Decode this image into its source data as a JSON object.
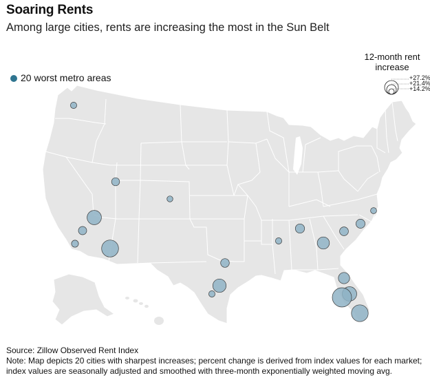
{
  "header": {
    "title": "Soaring Rents",
    "subtitle": "Among large cities, rents are increasing the most in the Sun Belt"
  },
  "legend": {
    "dot_label": "20 worst metro areas",
    "dot_color": "#2f7590",
    "size_title_line1": "12-month rent",
    "size_title_line2": "increase",
    "size_labels": [
      "+27.2%",
      "+21.4%",
      "+14.2%"
    ]
  },
  "colors": {
    "land": "#e6e6e6",
    "state_border": "#ffffff",
    "bubble_fill": "#8fb3c6",
    "bubble_stroke": "#3b3b3b"
  },
  "footer": {
    "source": "Source: Zillow Observed Rent Index",
    "note": "Note: Map depicts 20 cities with sharpest increases; percent change is derived from index values for each market; index values are seasonally adjusted and smoothed with three-month exponentially weighted moving avg."
  },
  "metros": [
    {
      "id": "seattle",
      "increase_pct": 14.6
    },
    {
      "id": "salt-lake-city",
      "increase_pct": 16.0
    },
    {
      "id": "denver",
      "increase_pct": 14.3
    },
    {
      "id": "las-vegas",
      "increase_pct": 21.0
    },
    {
      "id": "riverside",
      "increase_pct": 16.2
    },
    {
      "id": "san-diego",
      "increase_pct": 15.2
    },
    {
      "id": "phoenix",
      "increase_pct": 23.0
    },
    {
      "id": "dallas",
      "increase_pct": 16.5
    },
    {
      "id": "austin",
      "increase_pct": 20.2
    },
    {
      "id": "san-antonio",
      "increase_pct": 14.7
    },
    {
      "id": "memphis",
      "increase_pct": 14.6
    },
    {
      "id": "nashville",
      "increase_pct": 16.9
    },
    {
      "id": "atlanta",
      "increase_pct": 19.2
    },
    {
      "id": "charlotte",
      "increase_pct": 16.6
    },
    {
      "id": "raleigh",
      "increase_pct": 16.8
    },
    {
      "id": "virginia-beach",
      "increase_pct": 14.4
    },
    {
      "id": "jacksonville",
      "increase_pct": 18.6
    },
    {
      "id": "orlando",
      "increase_pct": 21.1
    },
    {
      "id": "tampa",
      "increase_pct": 24.9
    },
    {
      "id": "miami",
      "increase_pct": 22.9
    }
  ]
}
